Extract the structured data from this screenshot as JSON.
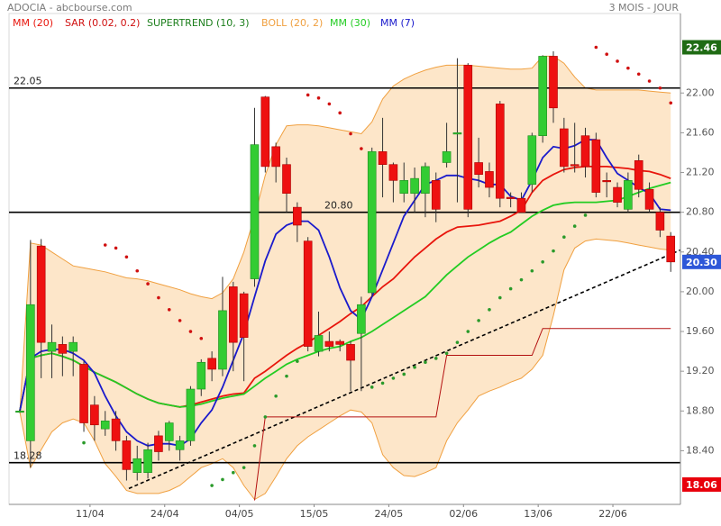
{
  "chart_data": {
    "type": "candlestick",
    "title": "ADOCIA - abcbourse.com",
    "period": "3 MOIS - JOUR",
    "categories": [
      null,
      null,
      null,
      null,
      null,
      null,
      null,
      "11/04",
      null,
      null,
      null,
      null,
      null,
      null,
      "24/04",
      null,
      null,
      null,
      null,
      null,
      null,
      "04/05",
      null,
      null,
      null,
      null,
      null,
      null,
      "15/05",
      null,
      null,
      null,
      null,
      null,
      null,
      "24/05",
      null,
      null,
      null,
      null,
      null,
      null,
      "02/06",
      null,
      null,
      null,
      null,
      null,
      null,
      "13/06",
      null,
      null,
      null,
      null,
      null,
      null,
      "22/06",
      null,
      null,
      null,
      null,
      null
    ],
    "open": [
      18.8,
      18.5,
      20.46,
      19.4,
      19.47,
      19.4,
      19.27,
      18.86,
      18.62,
      18.72,
      18.5,
      18.18,
      18.18,
      18.55,
      18.5,
      18.41,
      18.5,
      19.02,
      19.33,
      19.22,
      20.05,
      19.98,
      20.13,
      21.96,
      21.46,
      21.28,
      20.85,
      20.51,
      19.4,
      19.5,
      19.5,
      19.47,
      19.58,
      19.99,
      21.41,
      21.28,
      20.99,
      20.99,
      20.99,
      21.12,
      21.3,
      21.59,
      22.28,
      21.3,
      21.21,
      21.89,
      20.95,
      20.94,
      21.08,
      21.57,
      22.37,
      21.64,
      21.28,
      21.57,
      21.53,
      21.12,
      21.05,
      20.83,
      21.32,
      21.03,
      20.8,
      20.56
    ],
    "high": [
      18.82,
      20.52,
      20.53,
      19.67,
      19.55,
      19.55,
      19.3,
      18.95,
      18.8,
      18.8,
      18.55,
      18.45,
      18.48,
      18.6,
      18.7,
      18.55,
      19.05,
      19.32,
      19.4,
      20.15,
      20.1,
      20.0,
      21.85,
      21.97,
      21.5,
      21.35,
      20.9,
      20.55,
      19.8,
      19.6,
      19.52,
      19.5,
      19.95,
      21.45,
      21.75,
      21.3,
      21.3,
      21.25,
      21.3,
      21.2,
      21.7,
      22.35,
      22.3,
      21.55,
      21.3,
      21.92,
      21.0,
      21.0,
      21.6,
      22.38,
      22.42,
      21.75,
      21.7,
      21.65,
      21.6,
      21.2,
      21.1,
      21.2,
      21.38,
      21.1,
      20.85,
      20.6
    ],
    "low": [
      18.78,
      18.23,
      19.13,
      19.13,
      19.15,
      19.15,
      18.59,
      18.5,
      18.55,
      18.4,
      18.1,
      18.1,
      18.12,
      18.3,
      18.4,
      18.3,
      18.45,
      18.95,
      19.1,
      19.15,
      19.2,
      19.1,
      20.05,
      21.2,
      21.1,
      20.8,
      20.5,
      19.4,
      19.35,
      19.4,
      19.4,
      19.0,
      19.0,
      19.95,
      20.95,
      20.9,
      20.9,
      20.8,
      20.75,
      20.7,
      21.25,
      20.9,
      20.75,
      21.05,
      20.95,
      20.85,
      20.85,
      20.8,
      21.0,
      21.5,
      21.7,
      21.2,
      21.2,
      21.15,
      20.95,
      20.95,
      20.85,
      20.8,
      20.95,
      20.8,
      20.55,
      20.2
    ],
    "close": [
      18.8,
      19.87,
      19.49,
      19.49,
      19.38,
      19.49,
      18.68,
      18.66,
      18.7,
      18.5,
      18.21,
      18.32,
      18.41,
      18.39,
      18.68,
      18.5,
      19.02,
      19.29,
      19.22,
      19.81,
      19.49,
      19.54,
      21.48,
      21.26,
      21.26,
      20.99,
      20.67,
      19.45,
      19.56,
      19.45,
      19.47,
      19.31,
      19.87,
      21.41,
      21.28,
      21.12,
      21.12,
      21.14,
      21.26,
      20.83,
      21.41,
      21.6,
      20.83,
      21.18,
      21.05,
      20.94,
      20.94,
      20.8,
      21.57,
      22.37,
      21.85,
      21.26,
      21.27,
      21.26,
      21.0,
      21.11,
      20.9,
      21.12,
      21.03,
      20.83,
      20.62,
      20.3
    ],
    "up_color": "#33cc33",
    "down_color": "#ee1111",
    "indicators": [
      {
        "name": "MM (20)",
        "type": "line",
        "color": "#e8150c",
        "values": [
          18.8,
          19.33,
          19.36,
          19.38,
          19.35,
          19.31,
          19.25,
          19.19,
          19.14,
          19.09,
          19.03,
          18.97,
          18.92,
          18.88,
          18.86,
          18.84,
          18.86,
          18.89,
          18.92,
          18.95,
          18.97,
          18.98,
          19.13,
          19.2,
          19.28,
          19.36,
          19.43,
          19.49,
          19.56,
          19.63,
          19.7,
          19.78,
          19.85,
          19.95,
          20.05,
          20.13,
          20.24,
          20.35,
          20.44,
          20.53,
          20.6,
          20.65,
          20.66,
          20.67,
          20.69,
          20.71,
          20.76,
          20.82,
          21.0,
          21.12,
          21.18,
          21.23,
          21.25,
          21.26,
          21.26,
          21.26,
          21.25,
          21.24,
          21.22,
          21.21,
          21.18,
          21.14
        ]
      },
      {
        "name": "SAR (0.02, 0.2)",
        "type": "dots",
        "color": "#d01010",
        "below_color": "#2a9a2a",
        "values": [
          null,
          null,
          null,
          null,
          null,
          null,
          18.48,
          null,
          20.47,
          20.44,
          20.35,
          20.21,
          20.08,
          19.94,
          19.82,
          19.71,
          19.6,
          19.53,
          18.05,
          18.11,
          18.18,
          18.23,
          18.45,
          18.74,
          18.95,
          19.15,
          19.3,
          21.98,
          21.95,
          21.89,
          21.8,
          21.59,
          21.44,
          19.04,
          19.08,
          19.13,
          19.17,
          19.24,
          19.29,
          19.33,
          19.38,
          19.49,
          19.6,
          19.71,
          19.82,
          19.94,
          20.03,
          20.12,
          20.21,
          20.3,
          20.41,
          20.55,
          20.66,
          20.77,
          22.46,
          22.39,
          22.32,
          22.25,
          22.19,
          22.12,
          22.05,
          21.9
        ]
      },
      {
        "name": "SUPERTREND (10, 3)",
        "type": "step",
        "color": "#1d7f1d",
        "line_color": "#b31010",
        "values": [
          null,
          null,
          null,
          null,
          null,
          null,
          null,
          null,
          null,
          null,
          null,
          null,
          null,
          null,
          null,
          null,
          null,
          null,
          null,
          null,
          null,
          null,
          17.9,
          18.74,
          18.74,
          18.74,
          18.74,
          18.74,
          18.74,
          18.74,
          18.74,
          18.74,
          18.74,
          18.74,
          18.74,
          18.74,
          18.74,
          18.74,
          18.74,
          18.74,
          19.36,
          19.36,
          19.36,
          19.36,
          19.36,
          19.36,
          19.36,
          19.36,
          19.36,
          19.63,
          19.63,
          19.63,
          19.63,
          19.63,
          19.63,
          19.63,
          19.63,
          19.63,
          19.63,
          19.63,
          19.63,
          19.63
        ]
      },
      {
        "name": "BOLL (20, 2)",
        "type": "band",
        "color": "#f0a040",
        "fill": "#fde6c9",
        "upper": [
          18.79,
          20.49,
          20.47,
          20.4,
          20.33,
          20.26,
          20.24,
          20.22,
          20.2,
          20.17,
          20.14,
          20.13,
          20.11,
          20.08,
          20.05,
          20.02,
          19.98,
          19.95,
          19.93,
          19.99,
          20.13,
          20.4,
          20.76,
          21.17,
          21.48,
          21.67,
          21.68,
          21.68,
          21.67,
          21.65,
          21.63,
          21.61,
          21.59,
          21.71,
          21.94,
          22.07,
          22.14,
          22.19,
          22.23,
          22.26,
          22.28,
          22.28,
          22.28,
          22.27,
          22.26,
          22.25,
          22.24,
          22.24,
          22.25,
          22.37,
          22.37,
          22.3,
          22.16,
          22.05,
          22.03,
          22.03,
          22.03,
          22.03,
          22.03,
          22.02,
          22.01,
          22.0
        ],
        "lower": [
          18.79,
          18.23,
          18.41,
          18.59,
          18.68,
          18.72,
          18.68,
          18.5,
          18.27,
          18.14,
          18.0,
          17.97,
          17.97,
          17.97,
          18.0,
          18.05,
          18.14,
          18.23,
          18.27,
          18.32,
          18.23,
          18.05,
          17.91,
          17.97,
          18.14,
          18.32,
          18.45,
          18.54,
          18.61,
          18.68,
          18.75,
          18.81,
          18.79,
          18.68,
          18.36,
          18.23,
          18.15,
          18.14,
          18.18,
          18.23,
          18.5,
          18.68,
          18.81,
          18.95,
          19.0,
          19.04,
          19.09,
          19.13,
          19.22,
          19.36,
          19.76,
          20.22,
          20.44,
          20.51,
          20.53,
          20.52,
          20.51,
          20.49,
          20.47,
          20.45,
          20.43,
          20.42
        ]
      },
      {
        "name": "MM (30)",
        "type": "line",
        "color": "#22cc22",
        "values": [
          18.8,
          19.33,
          19.36,
          19.38,
          19.35,
          19.31,
          19.25,
          19.19,
          19.14,
          19.09,
          19.03,
          18.97,
          18.92,
          18.88,
          18.86,
          18.84,
          18.85,
          18.87,
          18.9,
          18.93,
          18.95,
          18.97,
          19.05,
          19.13,
          19.2,
          19.27,
          19.32,
          19.36,
          19.4,
          19.43,
          19.45,
          19.5,
          19.54,
          19.6,
          19.67,
          19.74,
          19.81,
          19.88,
          19.95,
          20.06,
          20.17,
          20.26,
          20.35,
          20.42,
          20.49,
          20.55,
          20.6,
          20.68,
          20.76,
          20.82,
          20.87,
          20.89,
          20.9,
          20.9,
          20.9,
          20.91,
          20.92,
          20.96,
          21.0,
          21.04,
          21.07,
          21.1
        ]
      },
      {
        "name": "MM (7)",
        "type": "line",
        "color": "#1a1acc",
        "values": [
          18.8,
          19.33,
          19.4,
          19.42,
          19.42,
          19.38,
          19.31,
          19.18,
          18.95,
          18.75,
          18.59,
          18.5,
          18.45,
          18.47,
          18.47,
          18.45,
          18.52,
          18.68,
          18.81,
          19.04,
          19.31,
          19.58,
          19.95,
          20.31,
          20.58,
          20.67,
          20.71,
          20.71,
          20.62,
          20.35,
          20.04,
          19.81,
          19.72,
          19.95,
          20.22,
          20.49,
          20.76,
          20.92,
          21.08,
          21.12,
          21.17,
          21.17,
          21.14,
          21.12,
          21.08,
          21.08,
          20.96,
          20.92,
          21.12,
          21.35,
          21.46,
          21.44,
          21.47,
          21.53,
          21.53,
          21.35,
          21.19,
          21.12,
          21.05,
          20.99,
          20.83,
          20.82
        ]
      }
    ],
    "hlines": [
      {
        "value": 22.05
      },
      {
        "value": 20.8,
        "label": "20.80"
      },
      {
        "value": 18.28
      }
    ],
    "trendline": {
      "values": [
        18.02,
        20.42
      ]
    },
    "price_markers": [
      {
        "value": 22.46,
        "color": "#1f6b14"
      },
      {
        "value": 20.3,
        "label": "20.30",
        "color": "#2d57d8"
      },
      {
        "value": 18.06,
        "color": "#e8000b"
      }
    ],
    "ylim": [
      17.86,
      22.8
    ],
    "yticks": [
      {
        "value": 18.4,
        "label": "18.40"
      },
      {
        "value": 18.8,
        "label": "18.80"
      },
      {
        "value": 19.2,
        "label": "19.20"
      },
      {
        "value": 19.6,
        "label": "19.60"
      },
      {
        "value": 20,
        "label": "20.00"
      },
      {
        "value": 20.4,
        "label": "20.40"
      },
      {
        "value": 20.8,
        "label": "20.80"
      },
      {
        "value": 21.2,
        "label": "21.20"
      },
      {
        "value": 21.6,
        "label": "21.60"
      },
      {
        "value": 22,
        "label": "22.00"
      }
    ]
  }
}
